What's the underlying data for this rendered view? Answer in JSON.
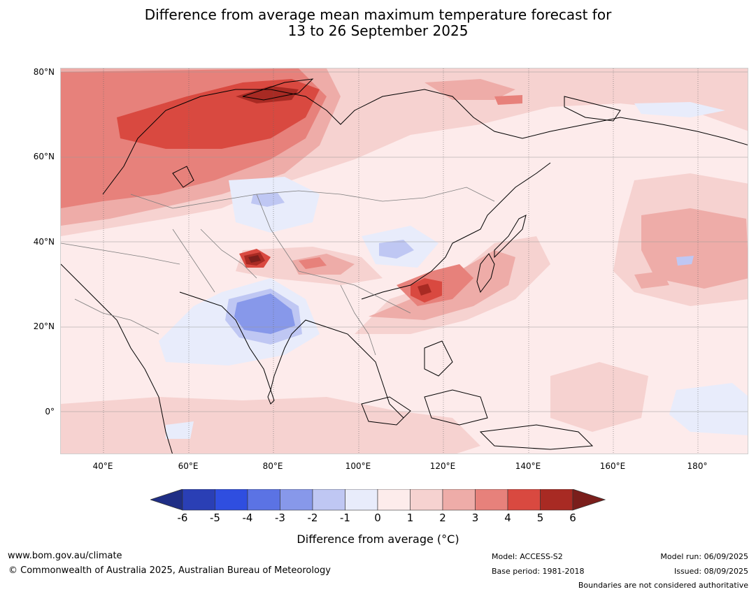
{
  "title": {
    "line1": "Difference from average mean maximum temperature forecast for",
    "line2": "13 to 26 September 2025"
  },
  "map": {
    "lat_labels": [
      "80°N",
      "60°N",
      "40°N",
      "20°N",
      "0°"
    ],
    "lon_labels": [
      "40°E",
      "60°E",
      "80°E",
      "100°E",
      "120°E",
      "140°E",
      "160°E",
      "180°"
    ]
  },
  "colorbar": {
    "label": "Difference from average (°C)",
    "ticks": [
      "-6",
      "-5",
      "-4",
      "-3",
      "-2",
      "-1",
      "0",
      "1",
      "2",
      "3",
      "4",
      "5",
      "6"
    ],
    "colors": [
      "#1f2e85",
      "#2a3fb5",
      "#2f4ee0",
      "#5b73e4",
      "#8798ea",
      "#bfc7f3",
      "#e8ecfb",
      "#fdeceb",
      "#f6d2d0",
      "#eeaca8",
      "#e7817b",
      "#d94940",
      "#a82a23",
      "#7a1e1b"
    ]
  },
  "footer": {
    "website": "www.bom.gov.au/climate",
    "copyright": "© Commonwealth of Australia 2025, Australian Bureau of Meteorology",
    "model": "Model: ACCESS-S2",
    "base_period": "Base period: 1981-2018",
    "model_run": "Model run: 06/09/2025",
    "issued": "Issued: 08/09/2025",
    "boundaries": "Boundaries are not considered authoritative"
  }
}
